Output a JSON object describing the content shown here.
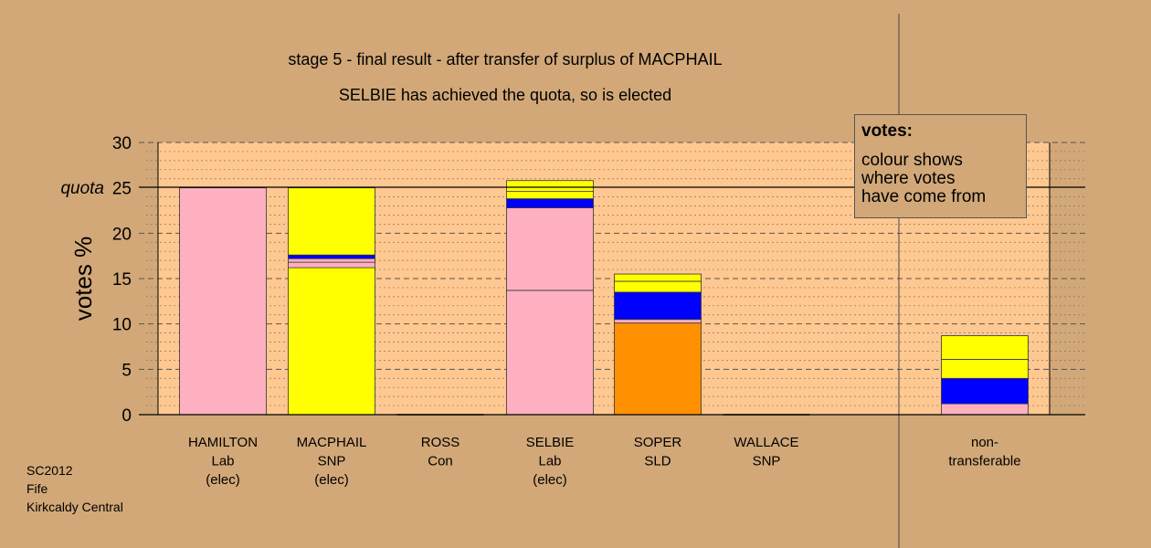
{
  "chart_data": {
    "type": "bar",
    "stacked": true,
    "title": "stage 5 - final result - after transfer of surplus of MACPHAIL",
    "subtitle": "SELBIE has achieved the quota, so is elected",
    "ylabel": "votes %",
    "ylim": [
      0,
      30
    ],
    "yticks": [
      "0",
      "5",
      "10",
      "15",
      "20",
      "25",
      "30"
    ],
    "quota_label": "quota",
    "quota_value": 25,
    "categories": [
      [
        "HAMILTON",
        "Lab",
        "(elec)"
      ],
      [
        "MACPHAIL",
        "SNP",
        "(elec)"
      ],
      [
        "ROSS",
        "Con"
      ],
      [
        "SELBIE",
        "Lab",
        "(elec)"
      ],
      [
        "SOPER",
        "SLD"
      ],
      [
        "WALLACE",
        "SNP"
      ],
      [
        "non-",
        "transferable"
      ]
    ],
    "stacks": [
      [
        {
          "value": 25.0,
          "color": "#ffb0c0"
        }
      ],
      [
        {
          "value": 16.2,
          "color": "#ffff00"
        },
        {
          "value": 0.6,
          "color": "#ffb0c0"
        },
        {
          "value": 0.4,
          "color": "#ffb0c0"
        },
        {
          "value": 0.4,
          "color": "#0000ff"
        },
        {
          "value": 7.4,
          "color": "#ffff00"
        }
      ],
      [],
      [
        {
          "value": 13.7,
          "color": "#ffb0c0"
        },
        {
          "value": 9.1,
          "color": "#ffb0c0"
        },
        {
          "value": 1.0,
          "color": "#0000ff"
        },
        {
          "value": 0.8,
          "color": "#ffff00"
        },
        {
          "value": 1.2,
          "color": "#ffff00"
        }
      ],
      [
        {
          "value": 10.1,
          "color": "#ff9000"
        },
        {
          "value": 0.4,
          "color": "#ffb0c0"
        },
        {
          "value": 3.0,
          "color": "#0000ff"
        },
        {
          "value": 1.2,
          "color": "#ffff00"
        },
        {
          "value": 0.8,
          "color": "#ffff00"
        }
      ],
      [],
      [
        {
          "value": 1.2,
          "color": "#ffb0c0"
        },
        {
          "value": 2.8,
          "color": "#0000ff"
        },
        {
          "value": 2.1,
          "color": "#ffff00"
        },
        {
          "value": 2.6,
          "color": "#ffff00"
        }
      ]
    ],
    "grid": true,
    "legend": {
      "title": "votes:",
      "lines": [
        "colour shows",
        "where votes",
        "have come from"
      ]
    }
  },
  "footer": {
    "lines": [
      "SC2012",
      "Fife",
      "Kirkcaldy Central"
    ]
  }
}
